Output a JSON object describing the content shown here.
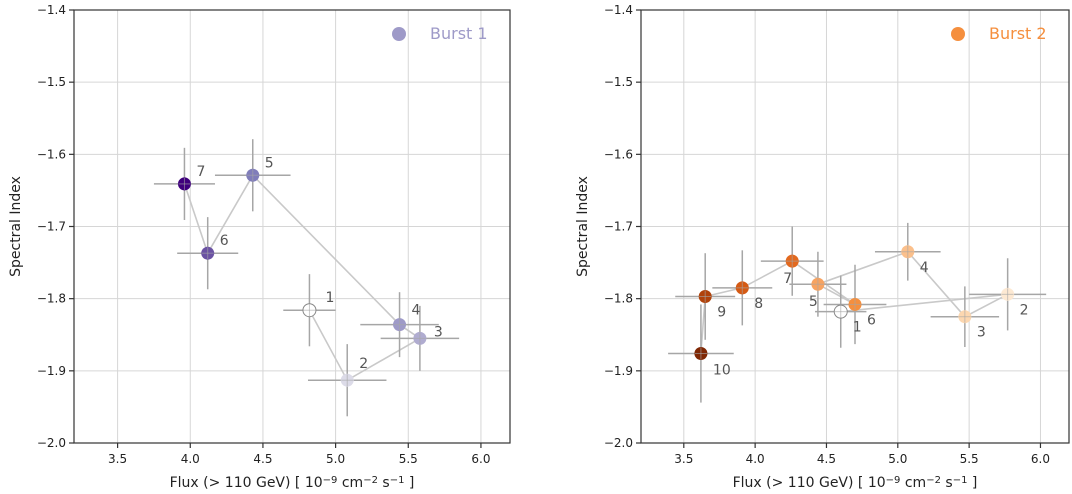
{
  "chart_data": [
    {
      "type": "scatter",
      "xlabel_parts": [
        "Flux (> 110 GeV) [ 10",
        "−9",
        " cm",
        "−2",
        " s",
        "−1",
        " ]"
      ],
      "ylabel": "Spectral Index",
      "xlim": [
        3.2,
        6.2
      ],
      "ylim": [
        -2.0,
        -1.4
      ],
      "xticks": [
        3.5,
        4.0,
        4.5,
        5.0,
        5.5,
        6.0
      ],
      "xtick_labels": [
        "3.5",
        "4.0",
        "4.5",
        "5.0",
        "5.5",
        "6.0"
      ],
      "yticks": [
        -2.0,
        -1.9,
        -1.8,
        -1.7,
        -1.6,
        -1.5,
        -1.4
      ],
      "ytick_labels": [
        "−2.0",
        "−1.9",
        "−1.8",
        "−1.7",
        "−1.6",
        "−1.5",
        "−1.4"
      ],
      "grid": true,
      "legend": {
        "label": "Burst 1",
        "color": "#9e9ac8",
        "position": "top-right"
      },
      "point_order_connected": true,
      "points": [
        {
          "label": "1",
          "x": 4.82,
          "y": -1.816,
          "xerr": 0.18,
          "yerr": 0.05,
          "fill": "#ffffff"
        },
        {
          "label": "2",
          "x": 5.08,
          "y": -1.913,
          "xerr": 0.27,
          "yerr": 0.05,
          "fill": "#dcdbe8"
        },
        {
          "label": "3",
          "x": 5.58,
          "y": -1.855,
          "xerr": 0.27,
          "yerr": 0.045,
          "fill": "#b0acd0"
        },
        {
          "label": "4",
          "x": 5.44,
          "y": -1.836,
          "xerr": 0.27,
          "yerr": 0.045,
          "fill": "#9e9ac8"
        },
        {
          "label": "5",
          "x": 4.43,
          "y": -1.629,
          "xerr": 0.26,
          "yerr": 0.05,
          "fill": "#807dba"
        },
        {
          "label": "6",
          "x": 4.12,
          "y": -1.737,
          "xerr": 0.21,
          "yerr": 0.05,
          "fill": "#6a51a3"
        },
        {
          "label": "7",
          "x": 3.96,
          "y": -1.641,
          "xerr": 0.21,
          "yerr": 0.05,
          "fill": "#3f007d"
        }
      ]
    },
    {
      "type": "scatter",
      "xlabel_parts": [
        "Flux (> 110 GeV) [ 10",
        "−9",
        " cm",
        "−2",
        " s",
        "−1",
        " ]"
      ],
      "ylabel": "Spectral Index",
      "xlim": [
        3.2,
        6.2
      ],
      "ylim": [
        -2.0,
        -1.4
      ],
      "xticks": [
        3.5,
        4.0,
        4.5,
        5.0,
        5.5,
        6.0
      ],
      "xtick_labels": [
        "3.5",
        "4.0",
        "4.5",
        "5.0",
        "5.5",
        "6.0"
      ],
      "yticks": [
        -2.0,
        -1.9,
        -1.8,
        -1.7,
        -1.6,
        -1.5,
        -1.4
      ],
      "ytick_labels": [
        "−2.0",
        "−1.9",
        "−1.8",
        "−1.7",
        "−1.6",
        "−1.5",
        "−1.4"
      ],
      "grid": true,
      "legend": {
        "label": "Burst 2",
        "color": "#f58f3e",
        "position": "top-right"
      },
      "point_order_connected": true,
      "points": [
        {
          "label": "1",
          "x": 4.6,
          "y": -1.818,
          "xerr": 0.18,
          "yerr": 0.05,
          "fill": "#ffffff"
        },
        {
          "label": "2",
          "x": 5.77,
          "y": -1.794,
          "xerr": 0.27,
          "yerr": 0.05,
          "fill": "#fde9d3"
        },
        {
          "label": "3",
          "x": 5.47,
          "y": -1.825,
          "xerr": 0.24,
          "yerr": 0.042,
          "fill": "#fcd7b0"
        },
        {
          "label": "4",
          "x": 5.07,
          "y": -1.735,
          "xerr": 0.23,
          "yerr": 0.04,
          "fill": "#fbc08c"
        },
        {
          "label": "5",
          "x": 4.44,
          "y": -1.78,
          "xerr": 0.2,
          "yerr": 0.045,
          "fill": "#f7a361"
        },
        {
          "label": "6",
          "x": 4.7,
          "y": -1.808,
          "xerr": 0.22,
          "yerr": 0.055,
          "fill": "#f58f3e"
        },
        {
          "label": "7",
          "x": 4.26,
          "y": -1.748,
          "xerr": 0.22,
          "yerr": 0.048,
          "fill": "#e2691f"
        },
        {
          "label": "8",
          "x": 3.91,
          "y": -1.785,
          "xerr": 0.21,
          "yerr": 0.052,
          "fill": "#d45a14"
        },
        {
          "label": "9",
          "x": 3.65,
          "y": -1.797,
          "xerr": 0.21,
          "yerr": 0.06,
          "fill": "#b0420a"
        },
        {
          "label": "10",
          "x": 3.62,
          "y": -1.876,
          "xerr": 0.23,
          "yerr": 0.068,
          "fill": "#7f2704"
        }
      ]
    }
  ]
}
